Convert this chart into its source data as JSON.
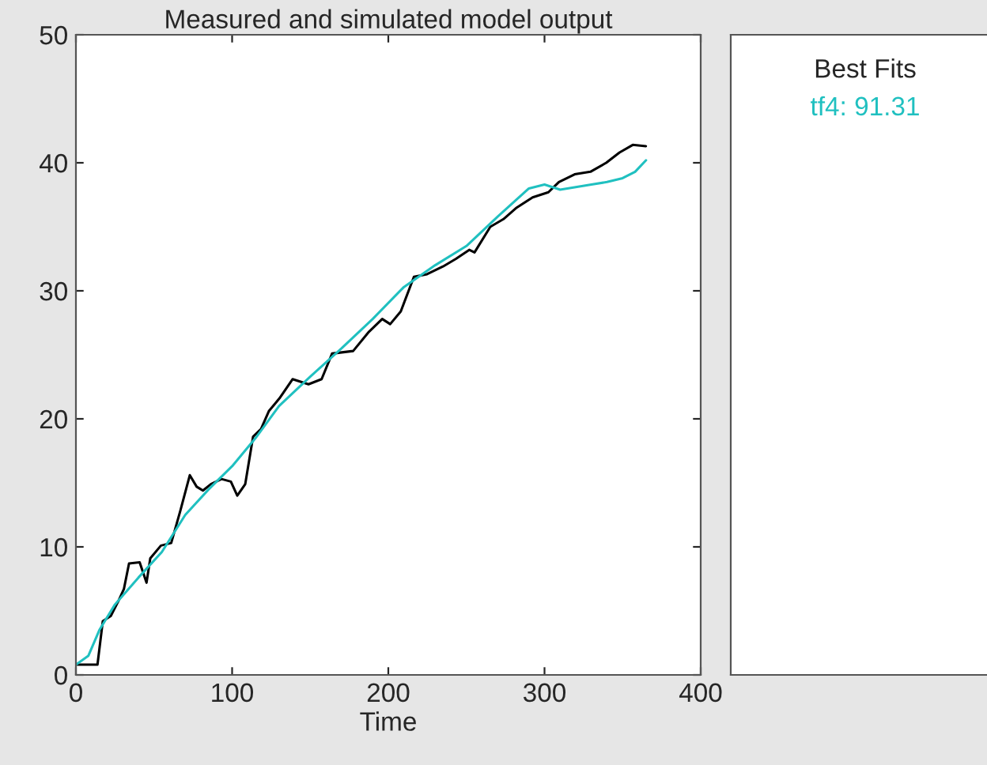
{
  "chart_data": {
    "type": "line",
    "title": "Measured and simulated model output",
    "xlabel": "Time",
    "legend_title": "Best Fits",
    "legend": "right",
    "grid": false,
    "xlim": [
      0,
      400
    ],
    "ylim": [
      0,
      50
    ],
    "xticks": [
      0,
      100,
      200,
      300,
      400
    ],
    "yticks": [
      0,
      10,
      20,
      30,
      40,
      50
    ],
    "line_style": "solid",
    "marker": "none",
    "series": [
      {
        "color": "#000000",
        "x": [
          0,
          13.8,
          17.2,
          22.3,
          27.3,
          30.7,
          34,
          40.8,
          45.2,
          47.6,
          54.4,
          61,
          66.8,
          72.9,
          77.3,
          81.3,
          86.4,
          93.2,
          99.2,
          103.3,
          108.4,
          113.4,
          118.5,
          123.5,
          130.3,
          138.7,
          148.9,
          157.3,
          164,
          177.5,
          187.6,
          196.1,
          201.2,
          208,
          216.4,
          224.8,
          235,
          243.3,
          251.8,
          255.2,
          265.3,
          273.7,
          282.2,
          292.4,
          302.5,
          309.2,
          319.3,
          329.4,
          339.5,
          348,
          356.5,
          364.9
        ],
        "values": [
          0.8,
          0.8,
          4.2,
          4.6,
          5.8,
          6.7,
          8.7,
          8.8,
          7.2,
          9.1,
          10.1,
          10.3,
          12.8,
          15.6,
          14.7,
          14.4,
          14.9,
          15.3,
          15.1,
          14.0,
          14.9,
          18.6,
          19.2,
          20.6,
          21.6,
          23.1,
          22.7,
          23.1,
          25.1,
          25.3,
          26.8,
          27.8,
          27.4,
          28.4,
          31.1,
          31.3,
          31.9,
          32.5,
          33.2,
          33.0,
          35.0,
          35.6,
          36.5,
          37.3,
          37.7,
          38.5,
          39.1,
          39.3,
          40.0,
          40.8,
          41.4,
          41.3
        ]
      },
      {
        "name": "tf4: 91.31",
        "color": "#20c0c0",
        "x": [
          0,
          8,
          15,
          25,
          40,
          55,
          70,
          85,
          100,
          115,
          130,
          150,
          170,
          190,
          210,
          230,
          250,
          270,
          290,
          300,
          310,
          320,
          330,
          340,
          350,
          358,
          365
        ],
        "values": [
          0.8,
          1.5,
          3.5,
          5.5,
          7.6,
          9.6,
          12.5,
          14.5,
          16.3,
          18.5,
          21,
          23.3,
          25.5,
          27.8,
          30.3,
          32,
          33.5,
          35.8,
          38,
          38.3,
          37.9,
          38.1,
          38.3,
          38.5,
          38.8,
          39.3,
          40.2
        ]
      }
    ]
  }
}
